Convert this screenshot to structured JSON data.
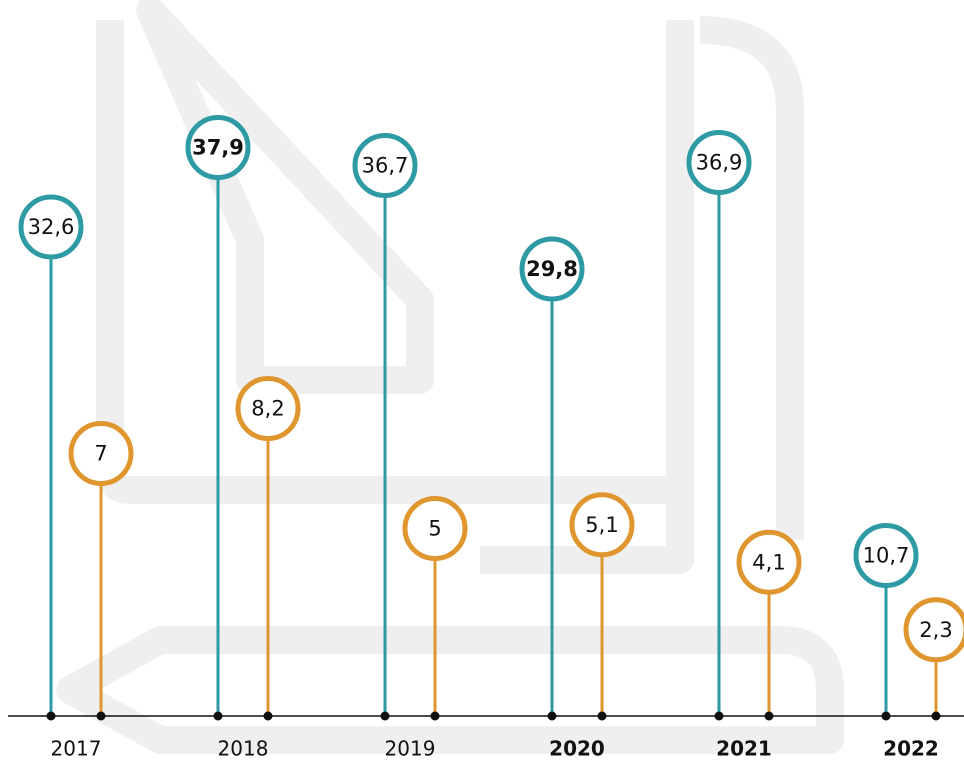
{
  "chart_data": {
    "type": "lollipop",
    "categories": [
      "2017",
      "2018",
      "2019",
      "2020",
      "2021",
      "2022"
    ],
    "ylim": [
      0,
      40
    ],
    "y2lim": [
      0,
      16
    ],
    "series": [
      {
        "color": "#2e9aa3",
        "values": [
          32.6,
          37.9,
          36.7,
          29.8,
          36.9,
          10.7
        ],
        "value_labels": [
          "32,6",
          "37,9",
          "36,7",
          "29,8",
          "36,9",
          "10,7"
        ]
      },
      {
        "color": "#e0962e",
        "axis": "y2",
        "values": [
          7,
          8.2,
          5,
          5.1,
          4.1,
          2.3
        ],
        "value_labels": [
          "7",
          "8,2",
          "5",
          "5,1",
          "4,1",
          "2,3"
        ]
      }
    ]
  }
}
